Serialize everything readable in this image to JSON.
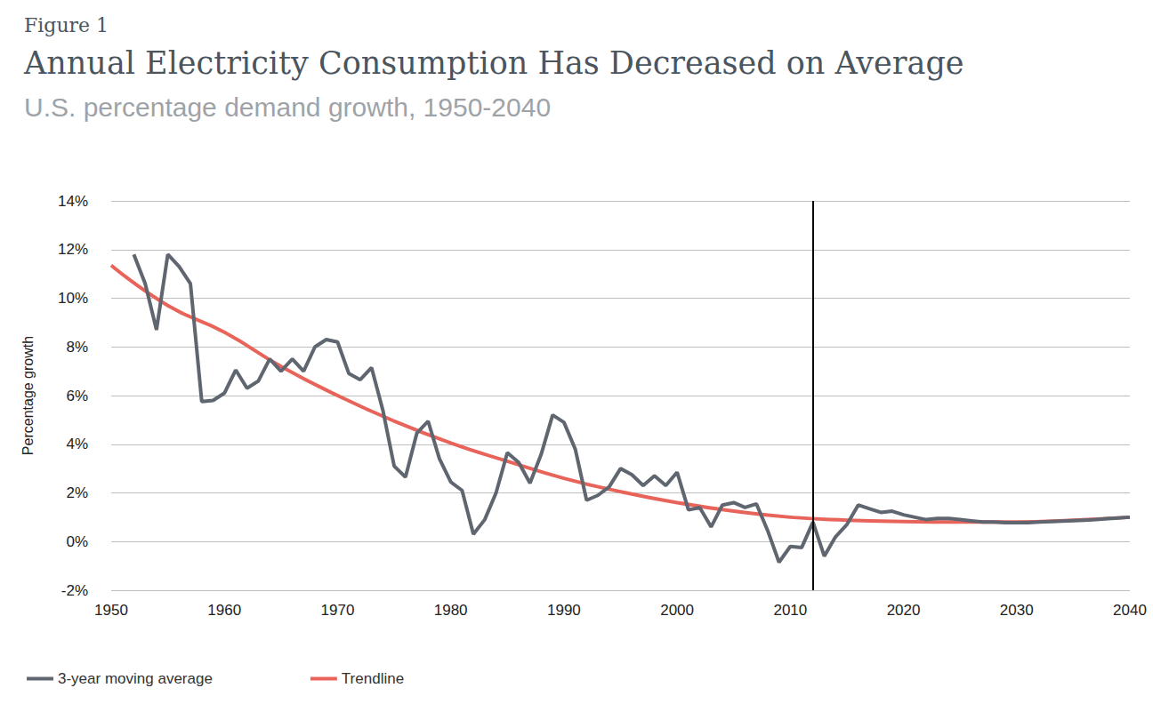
{
  "chart_data": {
    "type": "line",
    "figure_label": "Figure 1",
    "title": "Annual Electricity Consumption Has Decreased on Average",
    "subtitle": "U.S. percentage demand growth, 1950-2040",
    "y_label": "Percentage growth",
    "xlim": [
      1950,
      2040
    ],
    "xticks": [
      1950,
      1960,
      1970,
      1980,
      1990,
      2000,
      2010,
      2020,
      2030,
      2040
    ],
    "ylim": [
      -2,
      14
    ],
    "yticks": [
      {
        "value": -2,
        "label": "-2%"
      },
      {
        "value": 0,
        "label": "0%"
      },
      {
        "value": 2,
        "label": "2%"
      },
      {
        "value": 4,
        "label": "4%"
      },
      {
        "value": 6,
        "label": "6%"
      },
      {
        "value": 8,
        "label": "8%"
      },
      {
        "value": 10,
        "label": "10%"
      },
      {
        "value": 12,
        "label": "12%"
      },
      {
        "value": 14,
        "label": "14%"
      }
    ],
    "grid": true,
    "legend": "lower left",
    "vertical_line": {
      "x": 2012
    },
    "series": [
      {
        "name": "3-year moving average",
        "color": "#5f6670",
        "marker": "none",
        "line_style": "solid",
        "x": [
          1952,
          1953,
          1954,
          1955,
          1956,
          1957,
          1958,
          1959,
          1960,
          1961,
          1962,
          1963,
          1964,
          1965,
          1966,
          1967,
          1968,
          1969,
          1970,
          1971,
          1972,
          1973,
          1974,
          1975,
          1976,
          1977,
          1978,
          1979,
          1980,
          1981,
          1982,
          1983,
          1984,
          1985,
          1986,
          1987,
          1988,
          1989,
          1990,
          1991,
          1992,
          1993,
          1994,
          1995,
          1996,
          1997,
          1998,
          1999,
          2000,
          2001,
          2002,
          2003,
          2004,
          2005,
          2006,
          2007,
          2008,
          2009,
          2010,
          2011,
          2012,
          2013,
          2014,
          2015,
          2016,
          2017,
          2018,
          2019,
          2020,
          2021,
          2022,
          2023,
          2024,
          2025,
          2026,
          2027,
          2028,
          2029,
          2030,
          2031,
          2032,
          2033,
          2034,
          2035,
          2036,
          2037,
          2038,
          2039,
          2040
        ],
        "values": [
          11.8,
          10.6,
          8.7,
          11.8,
          11.3,
          10.6,
          5.75,
          5.8,
          6.1,
          7.05,
          6.3,
          6.6,
          7.5,
          7.0,
          7.5,
          7.0,
          8.0,
          8.3,
          8.2,
          6.9,
          6.65,
          7.15,
          5.4,
          3.1,
          2.65,
          4.45,
          4.95,
          3.4,
          2.45,
          2.1,
          0.3,
          0.9,
          2.0,
          3.65,
          3.25,
          2.4,
          3.6,
          5.2,
          4.9,
          3.8,
          1.7,
          1.9,
          2.25,
          3.0,
          2.75,
          2.3,
          2.7,
          2.3,
          2.85,
          1.3,
          1.4,
          0.6,
          1.5,
          1.6,
          1.4,
          1.55,
          0.45,
          -0.85,
          -0.2,
          -0.25,
          0.8,
          -0.6,
          0.2,
          0.7,
          1.5,
          1.35,
          1.2,
          1.25,
          1.1,
          1.0,
          0.9,
          0.95,
          0.95,
          0.9,
          0.85,
          0.8,
          0.8,
          0.78,
          0.78,
          0.78,
          0.8,
          0.82,
          0.84,
          0.86,
          0.88,
          0.9,
          0.94,
          0.97,
          1.0
        ]
      },
      {
        "name": "Trendline",
        "color": "#e8645a",
        "marker": "none",
        "line_style": "solid",
        "x": [
          1950,
          1955,
          1960,
          1965,
          1970,
          1975,
          1980,
          1985,
          1990,
          1995,
          2000,
          2005,
          2010,
          2015,
          2020,
          2025,
          2030,
          2035,
          2040
        ],
        "values": [
          11.35,
          9.7,
          8.6,
          7.2,
          6.0,
          4.95,
          4.05,
          3.3,
          2.6,
          2.05,
          1.6,
          1.25,
          1.0,
          0.88,
          0.82,
          0.8,
          0.8,
          0.88,
          1.0
        ]
      }
    ]
  }
}
